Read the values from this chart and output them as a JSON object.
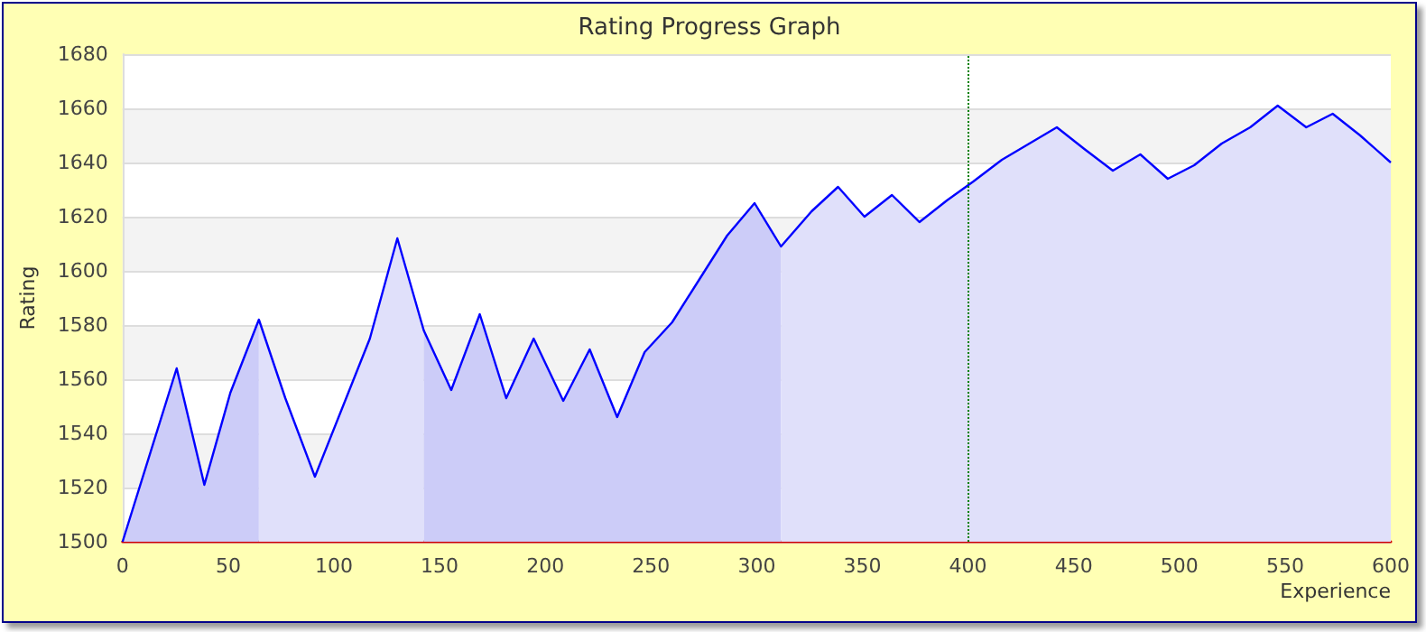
{
  "chart_data": {
    "type": "line",
    "title": "Rating Progress Graph",
    "xlabel": "Experience",
    "ylabel": "Rating",
    "xlim": [
      0,
      600
    ],
    "xticks": [
      0,
      50,
      100,
      150,
      200,
      250,
      300,
      350,
      400,
      450,
      500,
      550,
      600
    ],
    "ylim": [
      1500,
      1680
    ],
    "yticks": [
      1500,
      1520,
      1540,
      1560,
      1580,
      1600,
      1620,
      1640,
      1660,
      1680
    ],
    "grid": "y",
    "marker": "none",
    "line_style": "solid",
    "ref_lines": [
      {
        "axis": "x",
        "value": 400,
        "color": "#008000",
        "line_style": "dotted"
      }
    ],
    "series": [
      {
        "type": "area",
        "color": "#ccccf8",
        "x": [
          0,
          25.6,
          38.7,
          51,
          64.5
        ],
        "values": [
          1500,
          1564,
          1521,
          1555,
          1582
        ]
      },
      {
        "type": "area",
        "color": "#e0e0fa",
        "x": [
          64.5,
          77,
          91,
          117,
          130,
          142.5
        ],
        "values": [
          1582,
          1553,
          1524,
          1575,
          1612,
          1578
        ]
      },
      {
        "type": "area",
        "color": "#ccccf8",
        "x": [
          142.5,
          155.5,
          169,
          181.5,
          194.5,
          208.5,
          221,
          234,
          247,
          260,
          273,
          286,
          299,
          311.5
        ],
        "values": [
          1578,
          1556,
          1584,
          1553,
          1575,
          1552,
          1571,
          1546,
          1570,
          1581,
          1597,
          1613,
          1625,
          1609
        ]
      },
      {
        "type": "area",
        "color": "#e0e0fa",
        "x": [
          311.5,
          326,
          338.5,
          351,
          364,
          377,
          390,
          402.5,
          416,
          429,
          442,
          455,
          468.5,
          481.5,
          494.5,
          507,
          520,
          533.5,
          546.5,
          560,
          572.5,
          585.5,
          600
        ],
        "values": [
          1609,
          1622,
          1631,
          1620,
          1628,
          1618,
          1626,
          1633,
          1641,
          1647,
          1653,
          1645,
          1637,
          1643,
          1634,
          1639,
          1647,
          1653,
          1661,
          1653,
          1658,
          1650,
          1640
        ]
      },
      {
        "color": "#0000ff",
        "x": [
          0,
          25.6,
          38.7,
          51,
          64.5,
          77,
          91,
          117,
          130,
          142.5,
          155.5,
          169,
          181.5,
          194.5,
          208.5,
          221,
          234,
          247,
          260,
          273,
          286,
          299,
          311.5,
          326,
          338.5,
          351,
          364,
          377,
          390,
          402.5,
          416,
          429,
          442,
          455,
          468.5,
          481.5,
          494.5,
          507,
          520,
          533.5,
          546.5,
          560,
          572.5,
          585.5,
          600
        ],
        "values": [
          1500,
          1564,
          1521,
          1555,
          1582,
          1553,
          1524,
          1575,
          1612,
          1578,
          1556,
          1584,
          1553,
          1575,
          1552,
          1571,
          1546,
          1570,
          1581,
          1597,
          1613,
          1625,
          1609,
          1622,
          1631,
          1620,
          1628,
          1618,
          1626,
          1633,
          1641,
          1647,
          1653,
          1645,
          1637,
          1643,
          1634,
          1639,
          1647,
          1653,
          1661,
          1653,
          1658,
          1650,
          1640
        ]
      }
    ]
  }
}
